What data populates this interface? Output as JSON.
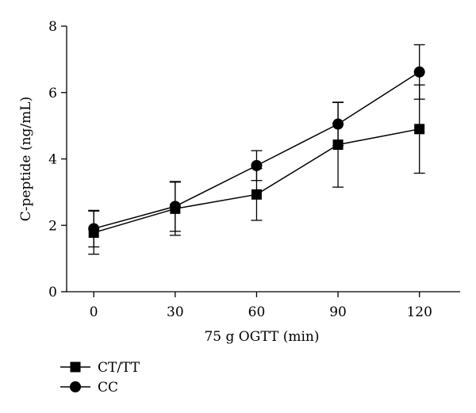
{
  "chart_data": {
    "type": "line",
    "xlabel": "75 g OGTT (min)",
    "ylabel": "C-peptide (ng/mL)",
    "x": [
      0,
      30,
      60,
      90,
      120
    ],
    "xticks": [
      "0",
      "30",
      "60",
      "90",
      "120"
    ],
    "yticks": [
      "0",
      "2",
      "4",
      "6",
      "8"
    ],
    "xlim": [
      -10,
      135
    ],
    "ylim": [
      0,
      8
    ],
    "grid": false,
    "legend_position": "bottom-left",
    "series": [
      {
        "name": "CT/TT",
        "marker": "square",
        "values": [
          1.78,
          2.5,
          2.93,
          4.43,
          4.9
        ],
        "error": [
          0.65,
          0.8,
          0.78,
          1.28,
          1.33
        ]
      },
      {
        "name": "CC",
        "marker": "circle",
        "values": [
          1.9,
          2.57,
          3.8,
          5.05,
          6.62
        ],
        "error": [
          0.55,
          0.75,
          0.45,
          0.65,
          0.82
        ]
      }
    ],
    "colors": {
      "line": "#000000",
      "marker": "#000000"
    }
  }
}
